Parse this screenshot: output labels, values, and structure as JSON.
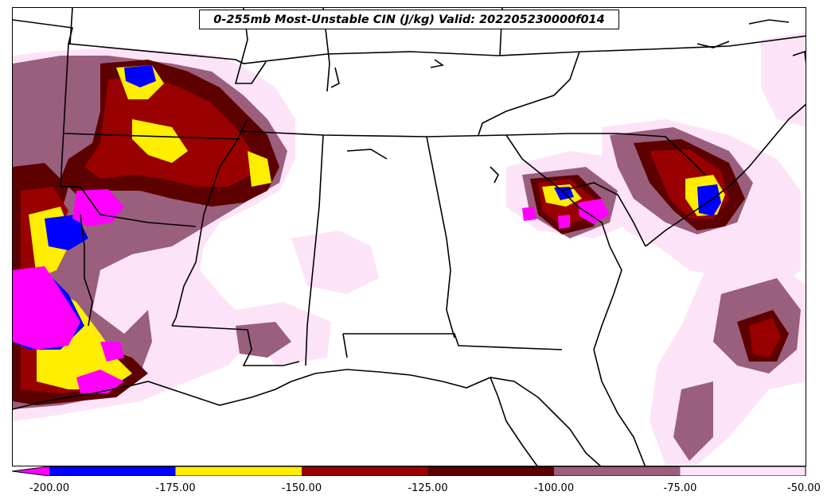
{
  "title": "0-255mb Most-Unstable CIN (J/kg) Valid: 202205230000f014",
  "colors": {
    "lt_-200": "#ff00ff",
    "-200_-175": "#0000ff",
    "-175_-150": "#ffee00",
    "-150_-125": "#990000",
    "-125_-100": "#5c0000",
    "-100_-75": "#9a5f7c",
    "-75_-50": "#fde3f8",
    "outline": "#000000"
  },
  "colorbar": {
    "levels": [
      -200,
      -175,
      -150,
      -125,
      -100,
      -75,
      -50
    ],
    "tick_labels": [
      "-200.00",
      "-175.00",
      "-150.00",
      "-125.00",
      "-100.00",
      "-75.00",
      "-50.00"
    ],
    "extend": "min"
  }
}
